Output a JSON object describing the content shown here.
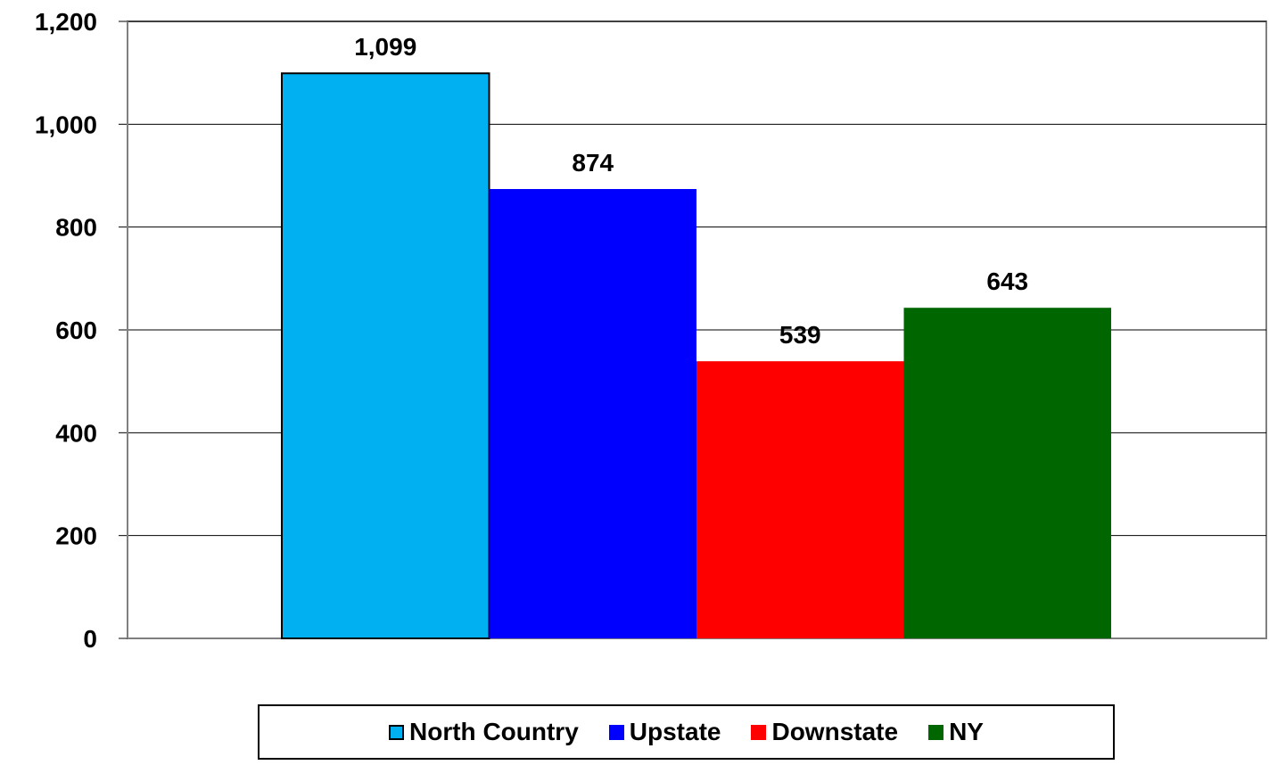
{
  "chart_data": {
    "type": "bar",
    "title": "",
    "xlabel": "",
    "ylabel": "",
    "ylim": [
      0,
      1200
    ],
    "yticks": [
      0,
      200,
      400,
      600,
      800,
      1000,
      1200
    ],
    "ytick_labels": [
      "0",
      "200",
      "400",
      "600",
      "800",
      "1,000",
      "1,200"
    ],
    "grid": true,
    "legend_position": "bottom",
    "categories": [
      ""
    ],
    "series": [
      {
        "name": "North Country",
        "values": [
          1099
        ],
        "value_label": "1,099",
        "color": "#00B0F0",
        "outlined": true
      },
      {
        "name": "Upstate",
        "values": [
          874
        ],
        "value_label": "874",
        "color": "#0000FF",
        "outlined": false
      },
      {
        "name": "Downstate",
        "values": [
          539
        ],
        "value_label": "539",
        "color": "#FF0000",
        "outlined": false
      },
      {
        "name": "NY",
        "values": [
          643
        ],
        "value_label": "643",
        "color": "#006600",
        "outlined": false
      }
    ]
  }
}
